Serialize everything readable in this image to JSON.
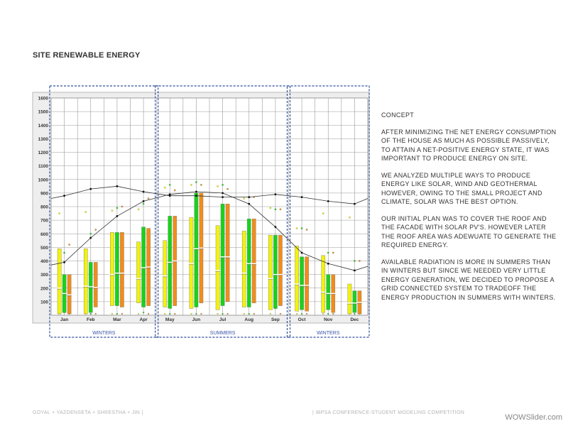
{
  "page": {
    "title": "SITE RENEWABLE ENERGY",
    "footer_left": "GOYAL + YAZDENSETA + SHRESTHA + JIN |",
    "footer_right": "| IBPSA CONFERENCE-STUDENT MODELING COMPETITION",
    "watermark": "WOWSlider.com"
  },
  "text_panel": {
    "heading": "CONCEPT",
    "paragraphs": [
      "AFTER MINIMIZING THE NET ENERGY CONSUMPTION OF THE HOUSE AS MUCH AS POSSIBLE PASSIVELY, TO ATTAIN A NET-POSITIVE ENERGY STATE, IT WAS IMPORTANT TO PRODUCE ENERGY ON SITE.",
      "WE ANALYZED MULTIPLE WAYS TO PRODUCE ENERGY LIKE SOLAR, WIND AND GEOTHERMAL HOWEVER, OWING TO THE SMALL PROJECT AND CLIMATE, SOLAR WAS THE BEST OPTION.",
      "OUR INITIAL PLAN WAS TO COVER THE ROOF AND THE FACADE WITH SOLAR PV'S. HOWEVER LATER THE ROOF AREA WAS ADEWUATE TO GENERATE THE REQUIRED ENERGY.",
      "AVAILABLE RADIATION IS MORE IN SUMMERS THAN IN WINTERS BUT SINCE WE NEEDED VERY LITTLE ENERGY GENERATION, WE DECIDED TO PROPOSE A GRID CONNECTED SYSTEM TO TRADEOFF THE ENERGY PRODUCTION IN SUMMERS WITH WINTERS."
    ]
  },
  "chart_data": {
    "type": "bar",
    "title": "",
    "xlabel": "",
    "ylabel": "",
    "ylim": [
      0,
      1600
    ],
    "yticks": [
      100,
      200,
      300,
      400,
      500,
      600,
      700,
      800,
      900,
      1000,
      1100,
      1200,
      1300,
      1400,
      1500,
      1600
    ],
    "grid": true,
    "categories": [
      "Jan",
      "Feb",
      "Mar",
      "Apr",
      "May",
      "Jun",
      "Jul",
      "Aug",
      "Sep",
      "Oct",
      "Nov",
      "Dec"
    ],
    "colors": {
      "yellow": "#f2f20c",
      "green": "#19d219",
      "orange": "#f28c19",
      "box_highlight": "#e8e800",
      "season_frame": "#2f4f9a",
      "season_label": "#3a55a8",
      "line": "#333333"
    },
    "season_bands": [
      {
        "label": "WINTERS",
        "months": [
          "Jan",
          "Feb",
          "Mar",
          "Apr"
        ]
      },
      {
        "label": "SUMMERS",
        "months": [
          "May",
          "Jun",
          "Jul",
          "Aug",
          "Sep"
        ]
      },
      {
        "label": "WINTERS",
        "months": [
          "Oct",
          "Nov",
          "Dec"
        ]
      }
    ],
    "series": [
      {
        "color": "yellow",
        "bottoms": [
          10,
          10,
          70,
          90,
          60,
          50,
          40,
          60,
          40,
          30,
          20,
          10
        ],
        "tops": [
          490,
          490,
          610,
          540,
          550,
          720,
          660,
          620,
          590,
          510,
          440,
          230
        ],
        "means": [
          200,
          215,
          300,
          270,
          290,
          380,
          330,
          310,
          270,
          230,
          170,
          90
        ],
        "points_high": [
          750,
          760,
          770,
          780,
          940,
          960,
          950,
          860,
          790,
          640,
          750,
          720
        ],
        "points_low": [
          0,
          0,
          0,
          0,
          0,
          0,
          0,
          0,
          0,
          0,
          0,
          0
        ]
      },
      {
        "color": "green",
        "bottoms": [
          20,
          20,
          70,
          60,
          50,
          60,
          70,
          60,
          50,
          40,
          40,
          20
        ],
        "tops": [
          300,
          390,
          610,
          650,
          730,
          900,
          820,
          710,
          590,
          430,
          300,
          180
        ],
        "means": [
          160,
          210,
          310,
          350,
          390,
          490,
          430,
          380,
          300,
          220,
          160,
          90
        ],
        "points_high": [
          460,
          600,
          790,
          820,
          960,
          980,
          960,
          870,
          780,
          640,
          460,
          400
        ],
        "points_low": [
          10,
          0,
          0,
          10,
          0,
          0,
          0,
          0,
          40,
          0,
          0,
          0
        ]
      },
      {
        "color": "orange",
        "bottoms": [
          10,
          60,
          60,
          70,
          70,
          90,
          100,
          90,
          70,
          30,
          20,
          10
        ],
        "tops": [
          300,
          390,
          610,
          640,
          730,
          900,
          820,
          710,
          590,
          430,
          300,
          180
        ],
        "means": [
          150,
          205,
          310,
          355,
          400,
          495,
          430,
          380,
          300,
          220,
          160,
          95
        ],
        "points_high": [
          520,
          630,
          800,
          860,
          920,
          960,
          930,
          870,
          780,
          630,
          460,
          400
        ],
        "points_low": [
          0,
          0,
          0,
          0,
          0,
          0,
          0,
          0,
          0,
          0,
          0,
          0
        ]
      }
    ],
    "lines": [
      {
        "id": "line-1",
        "x": [
          -0.5,
          0,
          1,
          2,
          3,
          4,
          5,
          6,
          7,
          8,
          9,
          10,
          11,
          11.5
        ],
        "values": [
          370,
          390,
          570,
          730,
          840,
          890,
          910,
          900,
          820,
          650,
          460,
          380,
          330,
          360
        ]
      },
      {
        "id": "line-2",
        "x": [
          -0.5,
          0,
          1,
          2,
          3,
          4,
          5,
          6,
          7,
          8,
          9,
          10,
          11,
          11.5
        ],
        "values": [
          860,
          880,
          930,
          950,
          910,
          880,
          880,
          870,
          870,
          890,
          870,
          840,
          820,
          860
        ]
      }
    ]
  }
}
